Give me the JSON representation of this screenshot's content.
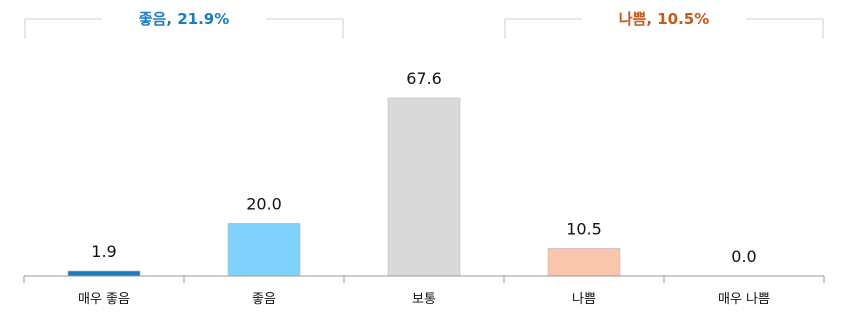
{
  "chart_data": {
    "type": "bar",
    "categories": [
      "매우 좋음",
      "좋음",
      "보통",
      "나쁨",
      "매우 나쁨"
    ],
    "values": [
      1.9,
      20.0,
      67.6,
      10.5,
      0.0
    ],
    "value_labels": [
      "1.9",
      "20.0",
      "67.6",
      "10.5",
      "0.0"
    ],
    "ylim": [
      0,
      67.6
    ],
    "bar_colors": [
      "#1a7cc1",
      "#7fd1fb",
      "#d9d9d9",
      "#f9c6ad",
      "#ffffff"
    ],
    "groups": [
      {
        "label": "좋음, 21.9%",
        "color": "#1a7cc1",
        "categories": [
          "매우 좋음",
          "좋음"
        ]
      },
      {
        "label": "나쁨, 10.5%",
        "color": "#c55a1a",
        "categories": [
          "나쁨",
          "매우 나쁨"
        ]
      }
    ],
    "grid": false,
    "title": "",
    "xlabel": "",
    "ylabel": ""
  }
}
